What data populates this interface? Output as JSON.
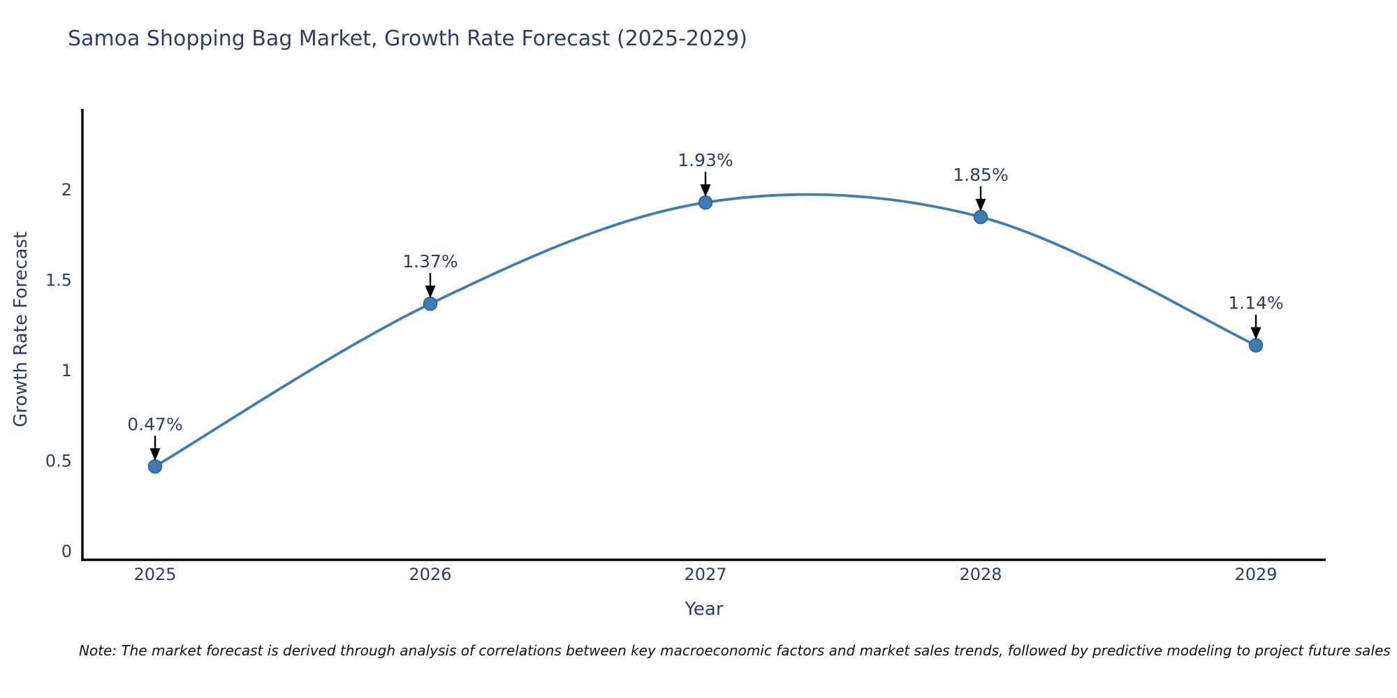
{
  "note": "Note: The market forecast is derived through analysis of correlations between key macroeconomic factors and market sales trends, followed by predictive modeling to project future sales",
  "chart_data": {
    "type": "line",
    "title": "Samoa Shopping Bag Market, Growth Rate Forecast (2025-2029)",
    "xlabel": "Year",
    "ylabel": "Growth Rate Forecast",
    "x": [
      2025,
      2026,
      2027,
      2028,
      2029
    ],
    "x_tick_labels": [
      "2025",
      "2026",
      "2027",
      "2028",
      "2029"
    ],
    "series": [
      {
        "name": "Growth Rate Forecast",
        "values": [
          0.47,
          1.37,
          1.93,
          1.85,
          1.14
        ],
        "point_labels": [
          "0.47%",
          "1.37%",
          "1.93%",
          "1.85%",
          "1.14%"
        ]
      }
    ],
    "yticks": [
      0,
      0.5,
      1,
      1.5,
      2
    ],
    "ytick_labels": [
      "0",
      "0.5",
      "1",
      "1.5",
      "2"
    ],
    "ylim": [
      0,
      2.44
    ],
    "grid": false,
    "legend": "none",
    "curve": "spline",
    "colors": {
      "line": "#3e7db6",
      "marker_fill": "#3d7ab8",
      "marker_edge": "#2d608f",
      "axis": "#000000",
      "text": "#2a3f5f",
      "annotation_arrow": "#000000",
      "note_text": "#111111"
    }
  }
}
